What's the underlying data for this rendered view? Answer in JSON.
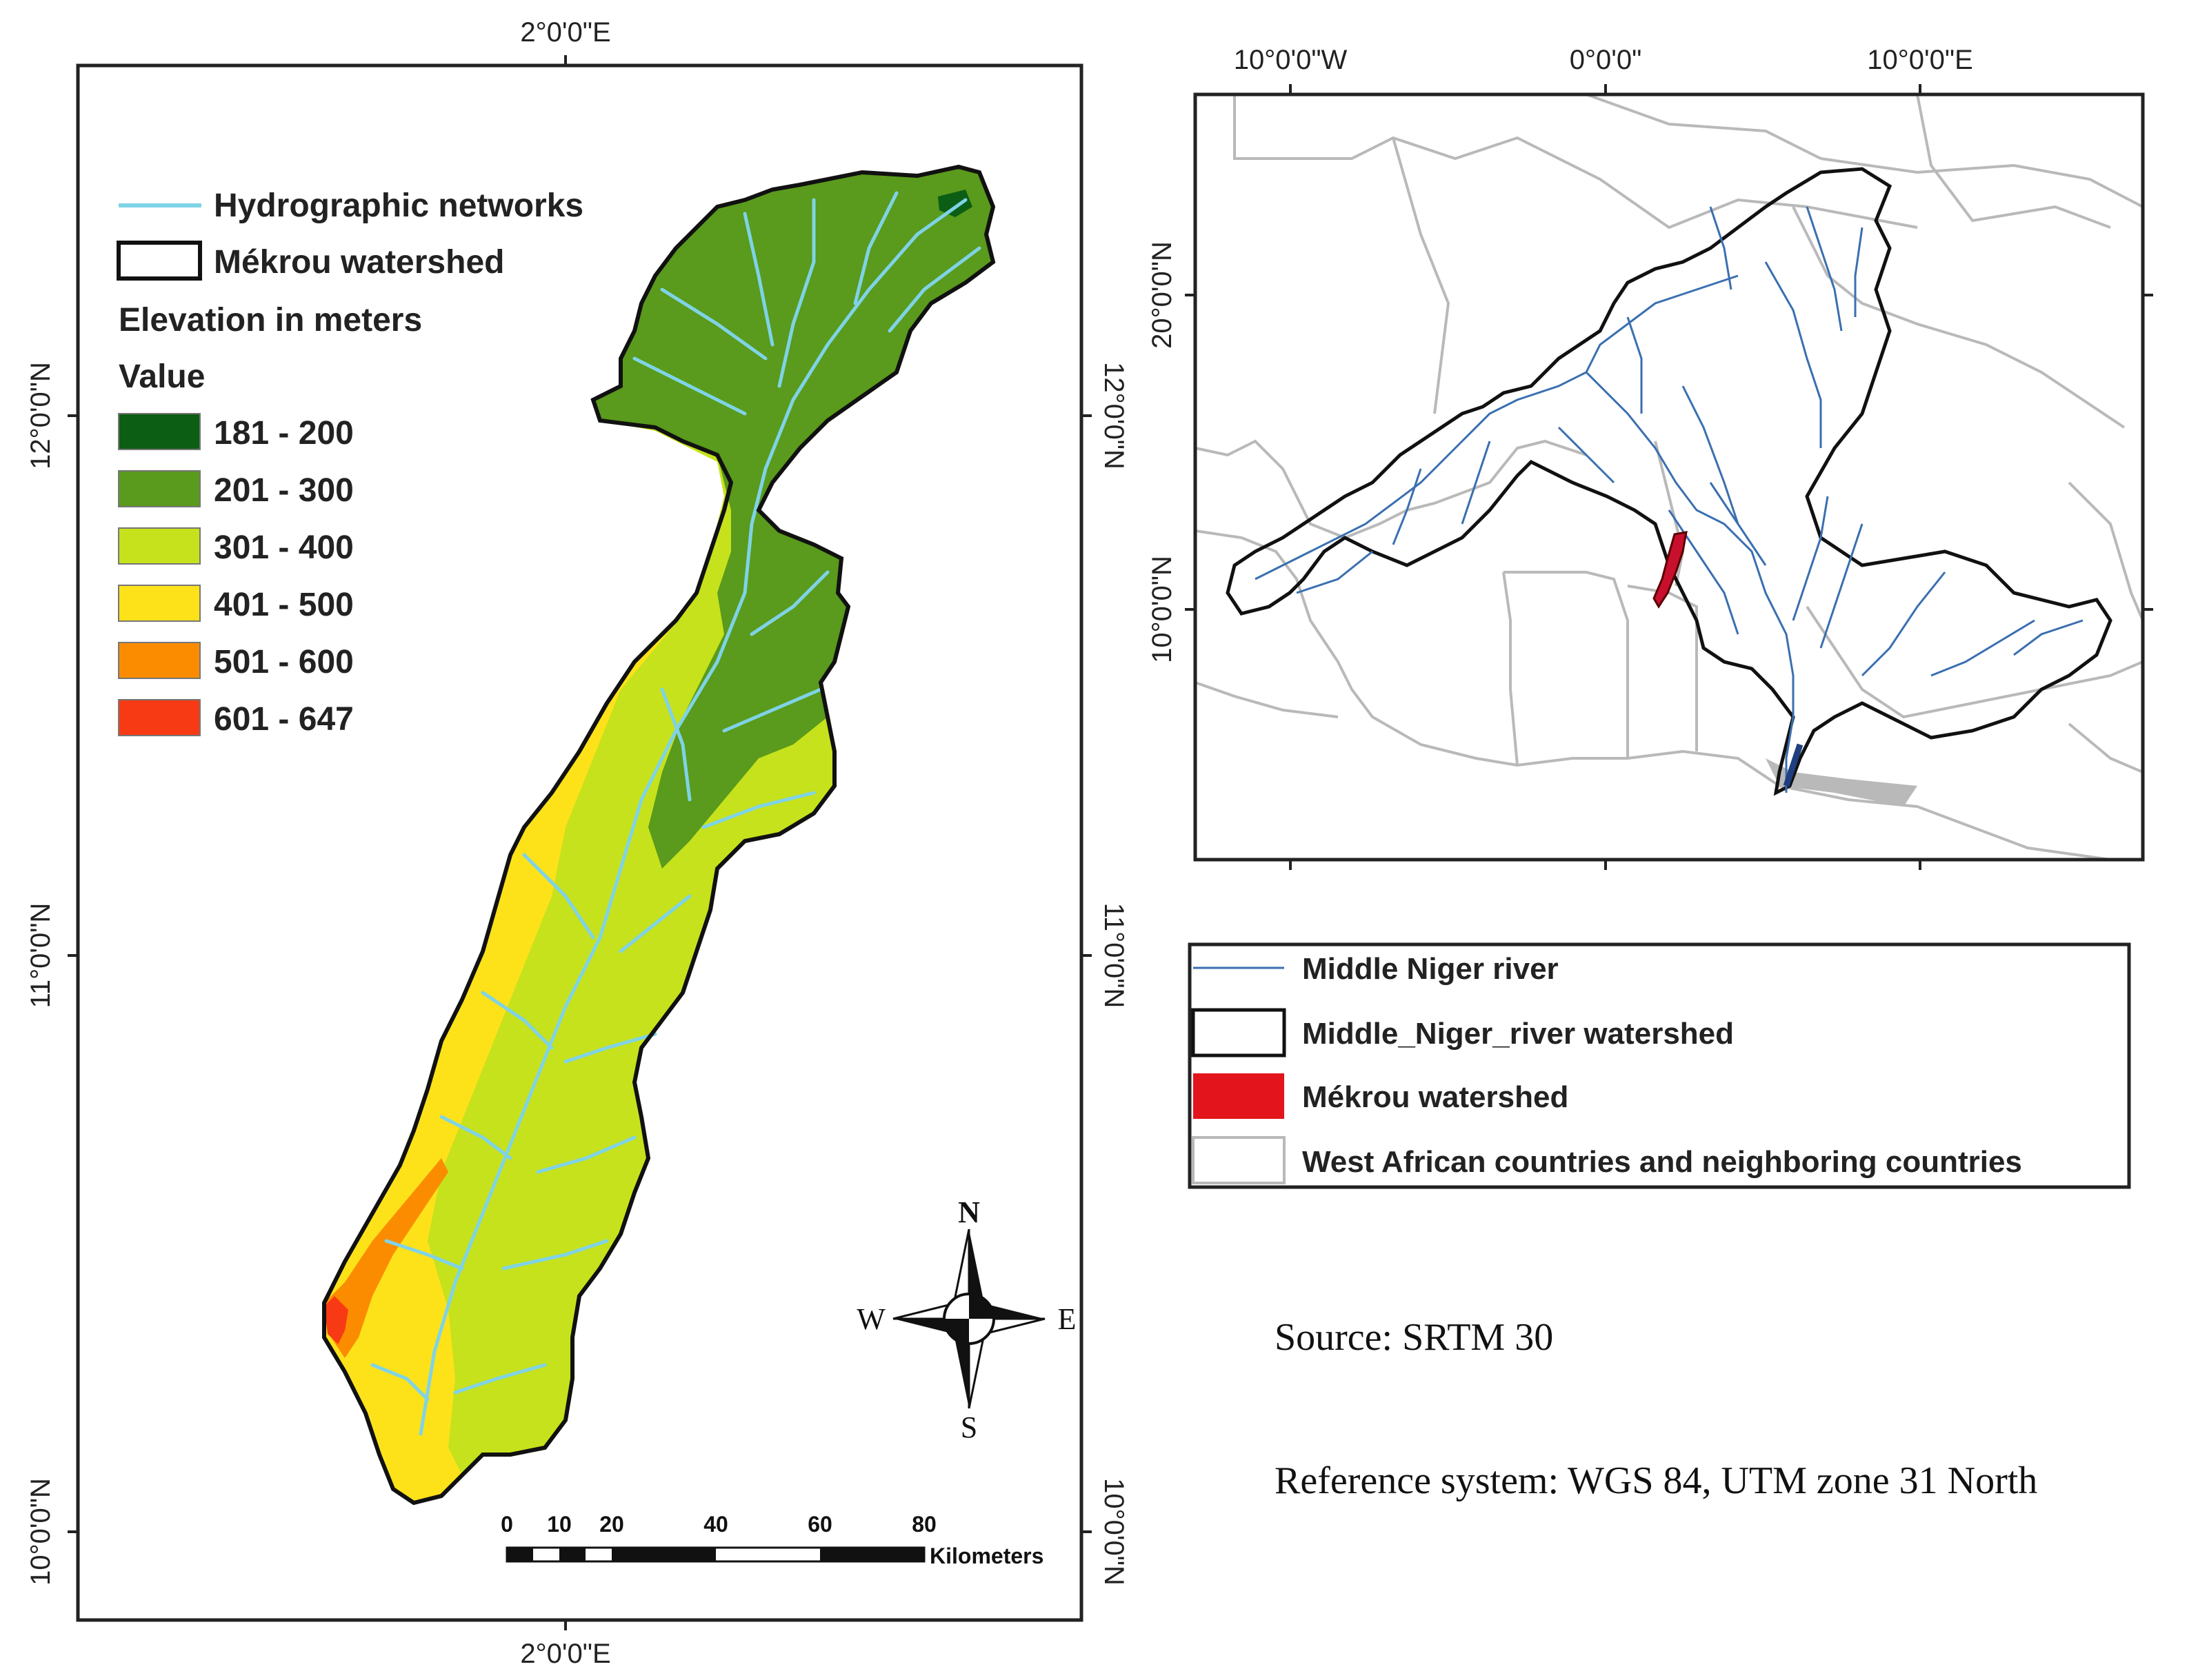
{
  "left_map": {
    "top_lon_label": "2°0'0\"E",
    "bottom_lon_label": "2°0'0\"E",
    "lat_labels": [
      "12°0'0\"N",
      "11°0'0\"N",
      "10°0'0\"N"
    ],
    "legend": {
      "hydro_label": "Hydrographic networks",
      "watershed_label": "Mékrou watershed",
      "elevation_title": "Elevation  in meters",
      "value_title": "Value",
      "classes": [
        {
          "label": "181 - 200",
          "color": "#0b5e14"
        },
        {
          "label": "201 - 300",
          "color": "#5a9a1c"
        },
        {
          "label": "301 - 400",
          "color": "#c6e21c"
        },
        {
          "label": "401 - 500",
          "color": "#fde21a"
        },
        {
          "label": "501 - 600",
          "color": "#fb8c00"
        },
        {
          "label": "601 - 647",
          "color": "#f83a14"
        }
      ]
    },
    "scale_bar": {
      "ticks": [
        "0",
        "10",
        "20",
        "40",
        "60",
        "80"
      ],
      "unit": "Kilometers"
    },
    "compass": {
      "n": "N",
      "s": "S",
      "e": "E",
      "w": "W"
    }
  },
  "right_map": {
    "top_lon_labels": [
      "10°0'0\"W",
      "0°0'0\"",
      "10°0'0\"E"
    ],
    "lat_labels": [
      "20°0'0\"N",
      "10°0'0\"N"
    ]
  },
  "right_legend": {
    "items": [
      {
        "label": "Middle Niger river",
        "kind": "line",
        "color": "#3a6fb0"
      },
      {
        "label": "Middle_Niger_river watershed",
        "kind": "box",
        "color": "#ffffff"
      },
      {
        "label": "Mékrou watershed",
        "kind": "fill",
        "color": "#e3141c"
      },
      {
        "label": "West African countries and neighboring countries",
        "kind": "box-grey",
        "color": "#ffffff"
      }
    ]
  },
  "notes": {
    "source": "Source: SRTM 30",
    "reference": "Reference system: WGS 84, UTM zone 31 North"
  },
  "colors": {
    "hydro": "#7fd3e6",
    "niger_river": "#3a6fb0",
    "country_border": "#b9b9b9",
    "mekrou_red": "#c8102e"
  }
}
